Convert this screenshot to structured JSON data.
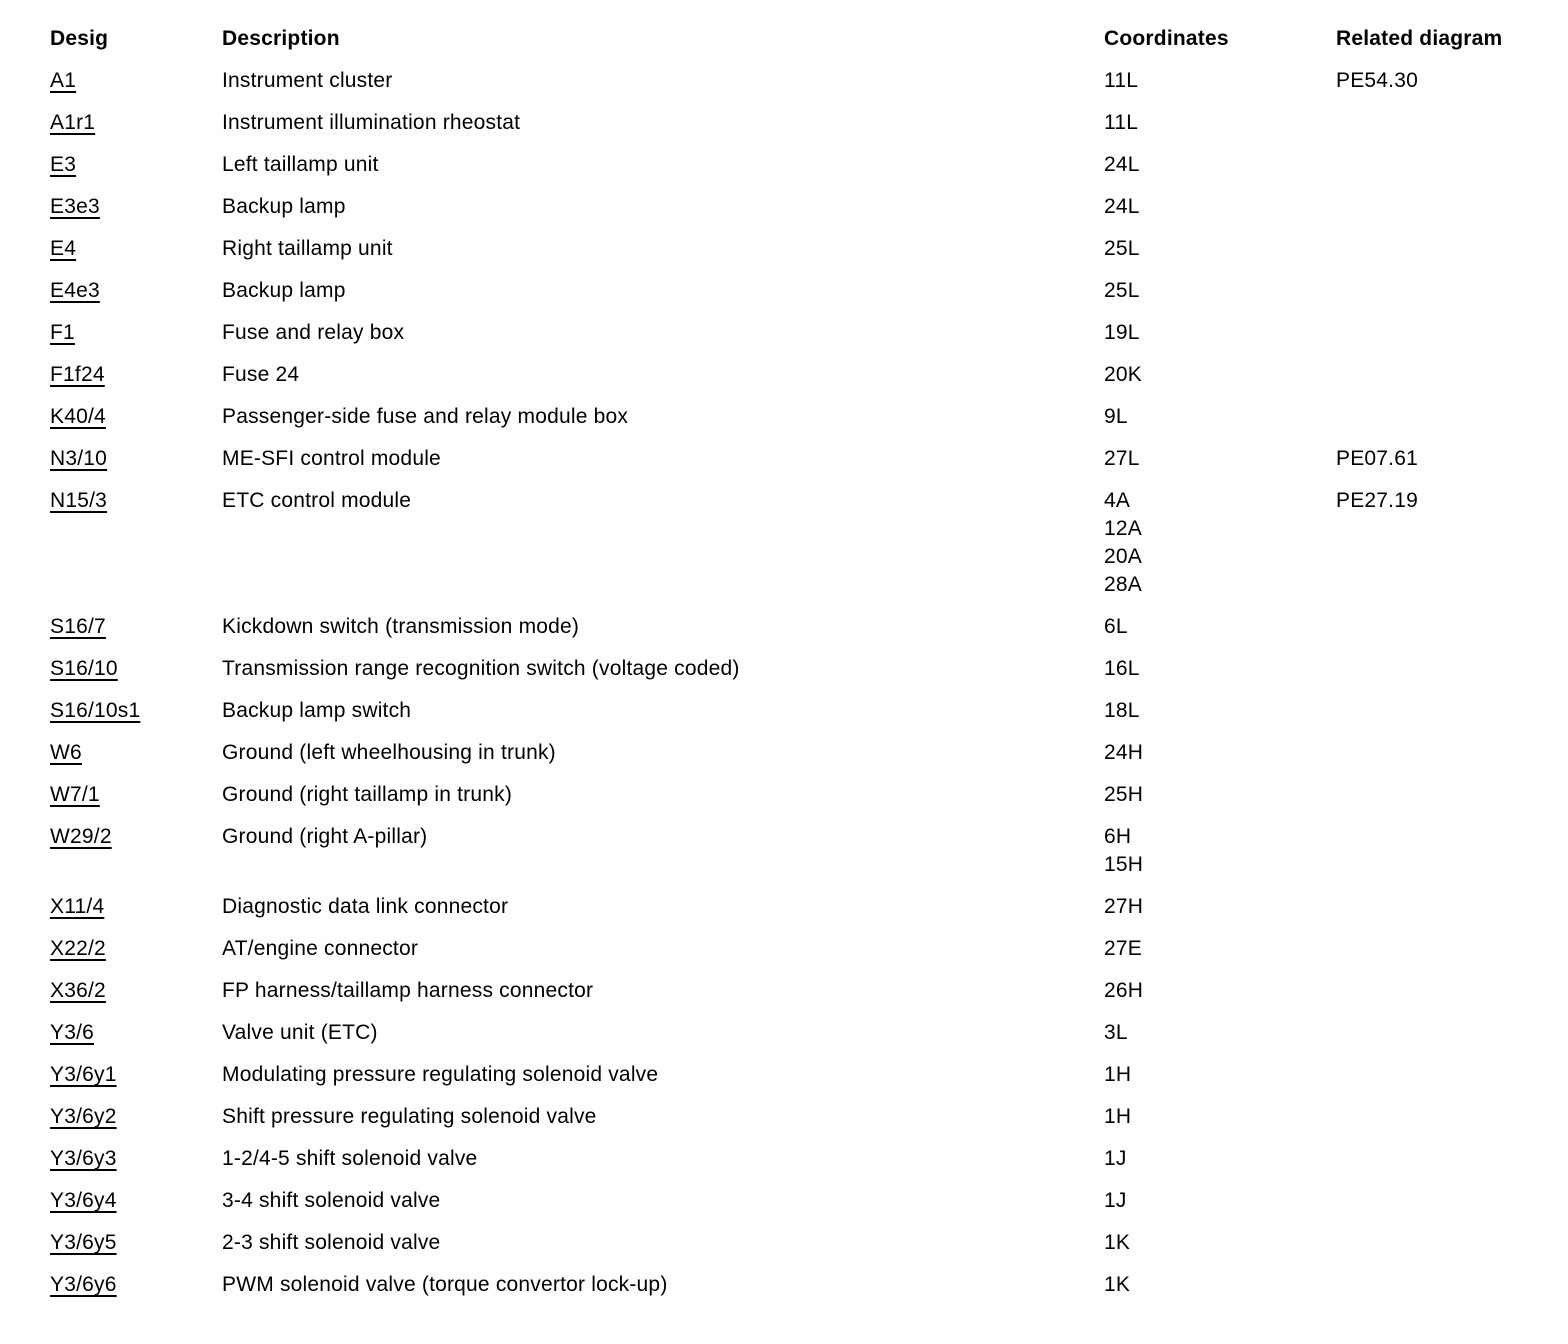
{
  "colors": {
    "text": "#000000",
    "background": "#ffffff"
  },
  "table": {
    "columns": [
      "Desig",
      "Description",
      "Coordinates",
      "Related diagram"
    ],
    "rows": [
      {
        "desig": "A1",
        "description": "Instrument cluster",
        "coordinates": [
          "11L"
        ],
        "related": "PE54.30"
      },
      {
        "desig": "A1r1",
        "description": "Instrument illumination rheostat",
        "coordinates": [
          "11L"
        ],
        "related": ""
      },
      {
        "desig": "E3",
        "description": "Left taillamp unit",
        "coordinates": [
          "24L"
        ],
        "related": ""
      },
      {
        "desig": "E3e3",
        "description": "Backup lamp",
        "coordinates": [
          "24L"
        ],
        "related": ""
      },
      {
        "desig": "E4",
        "description": "Right taillamp unit",
        "coordinates": [
          "25L"
        ],
        "related": ""
      },
      {
        "desig": "E4e3",
        "description": "Backup lamp",
        "coordinates": [
          "25L"
        ],
        "related": ""
      },
      {
        "desig": "F1",
        "description": "Fuse and relay box",
        "coordinates": [
          "19L"
        ],
        "related": ""
      },
      {
        "desig": "F1f24",
        "description": "Fuse 24",
        "coordinates": [
          "20K"
        ],
        "related": ""
      },
      {
        "desig": "K40/4",
        "description": "Passenger-side fuse and relay module box",
        "coordinates": [
          "9L"
        ],
        "related": ""
      },
      {
        "desig": "N3/10",
        "description": "ME-SFI control module",
        "coordinates": [
          "27L"
        ],
        "related": "PE07.61"
      },
      {
        "desig": "N15/3",
        "description": "ETC control module",
        "coordinates": [
          "4A",
          "12A",
          "20A",
          "28A"
        ],
        "related": "PE27.19"
      },
      {
        "desig": "S16/7",
        "description": "Kickdown switch (transmission mode)",
        "coordinates": [
          "6L"
        ],
        "related": ""
      },
      {
        "desig": "S16/10",
        "description": "Transmission range recognition switch (voltage coded)",
        "coordinates": [
          "16L"
        ],
        "related": ""
      },
      {
        "desig": "S16/10s1",
        "description": "Backup lamp switch",
        "coordinates": [
          "18L"
        ],
        "related": ""
      },
      {
        "desig": "W6",
        "description": "Ground (left wheelhousing in trunk)",
        "coordinates": [
          "24H"
        ],
        "related": ""
      },
      {
        "desig": "W7/1",
        "description": "Ground (right taillamp in trunk)",
        "coordinates": [
          "25H"
        ],
        "related": ""
      },
      {
        "desig": "W29/2",
        "description": "Ground (right A-pillar)",
        "coordinates": [
          "6H",
          "15H"
        ],
        "related": ""
      },
      {
        "desig": "X11/4",
        "description": "Diagnostic data link connector",
        "coordinates": [
          "27H"
        ],
        "related": ""
      },
      {
        "desig": "X22/2",
        "description": "AT/engine connector",
        "coordinates": [
          "27E"
        ],
        "related": ""
      },
      {
        "desig": "X36/2",
        "description": "FP harness/taillamp harness connector",
        "coordinates": [
          "26H"
        ],
        "related": ""
      },
      {
        "desig": "Y3/6",
        "description": "Valve unit (ETC)",
        "coordinates": [
          "3L"
        ],
        "related": ""
      },
      {
        "desig": "Y3/6y1",
        "description": "Modulating pressure regulating solenoid valve",
        "coordinates": [
          "1H"
        ],
        "related": ""
      },
      {
        "desig": "Y3/6y2",
        "description": "Shift pressure regulating solenoid valve",
        "coordinates": [
          "1H"
        ],
        "related": ""
      },
      {
        "desig": "Y3/6y3",
        "description": "1-2/4-5 shift solenoid valve",
        "coordinates": [
          "1J"
        ],
        "related": ""
      },
      {
        "desig": "Y3/6y4",
        "description": "3-4 shift solenoid valve",
        "coordinates": [
          "1J"
        ],
        "related": ""
      },
      {
        "desig": "Y3/6y5",
        "description": "2-3 shift solenoid valve",
        "coordinates": [
          "1K"
        ],
        "related": ""
      },
      {
        "desig": "Y3/6y6",
        "description": "PWM solenoid valve (torque convertor lock-up)",
        "coordinates": [
          "1K"
        ],
        "related": ""
      }
    ]
  }
}
